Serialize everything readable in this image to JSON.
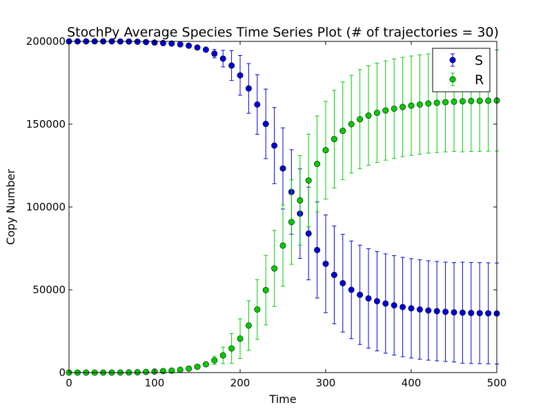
{
  "chart_data": {
    "type": "scatter",
    "title": "StochPy Average Species Time Series Plot (# of trajectories = 30)",
    "xlabel": "Time",
    "ylabel": "Copy Number",
    "xlim": [
      0,
      500
    ],
    "ylim": [
      0,
      200000
    ],
    "xticks": [
      "0",
      "100",
      "200",
      "300",
      "400",
      "500"
    ],
    "yticks": [
      "0",
      "50000",
      "100000",
      "150000",
      "200000"
    ],
    "grid": false,
    "legend": "top-right",
    "x": [
      0,
      10,
      20,
      30,
      40,
      50,
      60,
      70,
      80,
      90,
      100,
      110,
      120,
      130,
      140,
      150,
      160,
      170,
      180,
      190,
      200,
      210,
      220,
      230,
      240,
      250,
      260,
      270,
      280,
      290,
      300,
      310,
      320,
      330,
      340,
      350,
      360,
      370,
      380,
      390,
      400,
      410,
      420,
      430,
      440,
      450,
      460,
      470,
      480,
      490,
      500
    ],
    "series": [
      {
        "name": "S",
        "color": "#0000dd",
        "values": [
          200000,
          200000,
          200000,
          200000,
          200000,
          200000,
          199950,
          199900,
          199800,
          199600,
          199300,
          199000,
          198700,
          198200,
          197400,
          196300,
          195000,
          192600,
          189600,
          185400,
          179500,
          171600,
          161900,
          150200,
          137100,
          123300,
          109100,
          96000,
          84000,
          74000,
          65700,
          59000,
          54000,
          50000,
          47000,
          44800,
          43100,
          41700,
          40600,
          39600,
          38800,
          38100,
          37500,
          37100,
          36700,
          36400,
          36200,
          36000,
          35900,
          35800,
          35700
        ],
        "err": [
          0,
          0,
          0,
          0,
          0,
          0,
          0,
          0,
          0,
          0,
          0,
          0,
          0,
          0,
          0,
          0,
          0,
          2500,
          5000,
          9000,
          12000,
          15000,
          18000,
          21000,
          23000,
          24500,
          25500,
          27000,
          28000,
          29000,
          29500,
          29500,
          29500,
          29500,
          30000,
          30000,
          30000,
          30000,
          30000,
          30000,
          30000,
          30000,
          30000,
          30000,
          30000,
          30000,
          30500,
          30500,
          30500,
          30500,
          30500
        ]
      },
      {
        "name": "R",
        "color": "#00cc00",
        "values": [
          0,
          0,
          0,
          0,
          0,
          0,
          50,
          100,
          200,
          400,
          600,
          900,
          1200,
          1700,
          2400,
          3500,
          5000,
          7400,
          10400,
          14600,
          20500,
          28400,
          38100,
          49800,
          62900,
          76700,
          90900,
          104000,
          116000,
          126000,
          134300,
          141000,
          146000,
          150000,
          153000,
          155200,
          156900,
          158300,
          159400,
          160400,
          161200,
          161900,
          162500,
          162900,
          163300,
          163600,
          163800,
          164000,
          164100,
          164200,
          164300
        ],
        "err": [
          0,
          0,
          0,
          0,
          0,
          0,
          0,
          0,
          0,
          0,
          0,
          0,
          0,
          0,
          0,
          0,
          0,
          2500,
          5000,
          9000,
          12000,
          15000,
          18000,
          21000,
          23000,
          24500,
          25500,
          27000,
          28000,
          29000,
          29500,
          29500,
          29500,
          29500,
          30000,
          30000,
          30000,
          30000,
          30000,
          30000,
          30000,
          30000,
          30000,
          30000,
          30000,
          30000,
          30500,
          30500,
          30500,
          30500,
          30500
        ]
      }
    ]
  }
}
